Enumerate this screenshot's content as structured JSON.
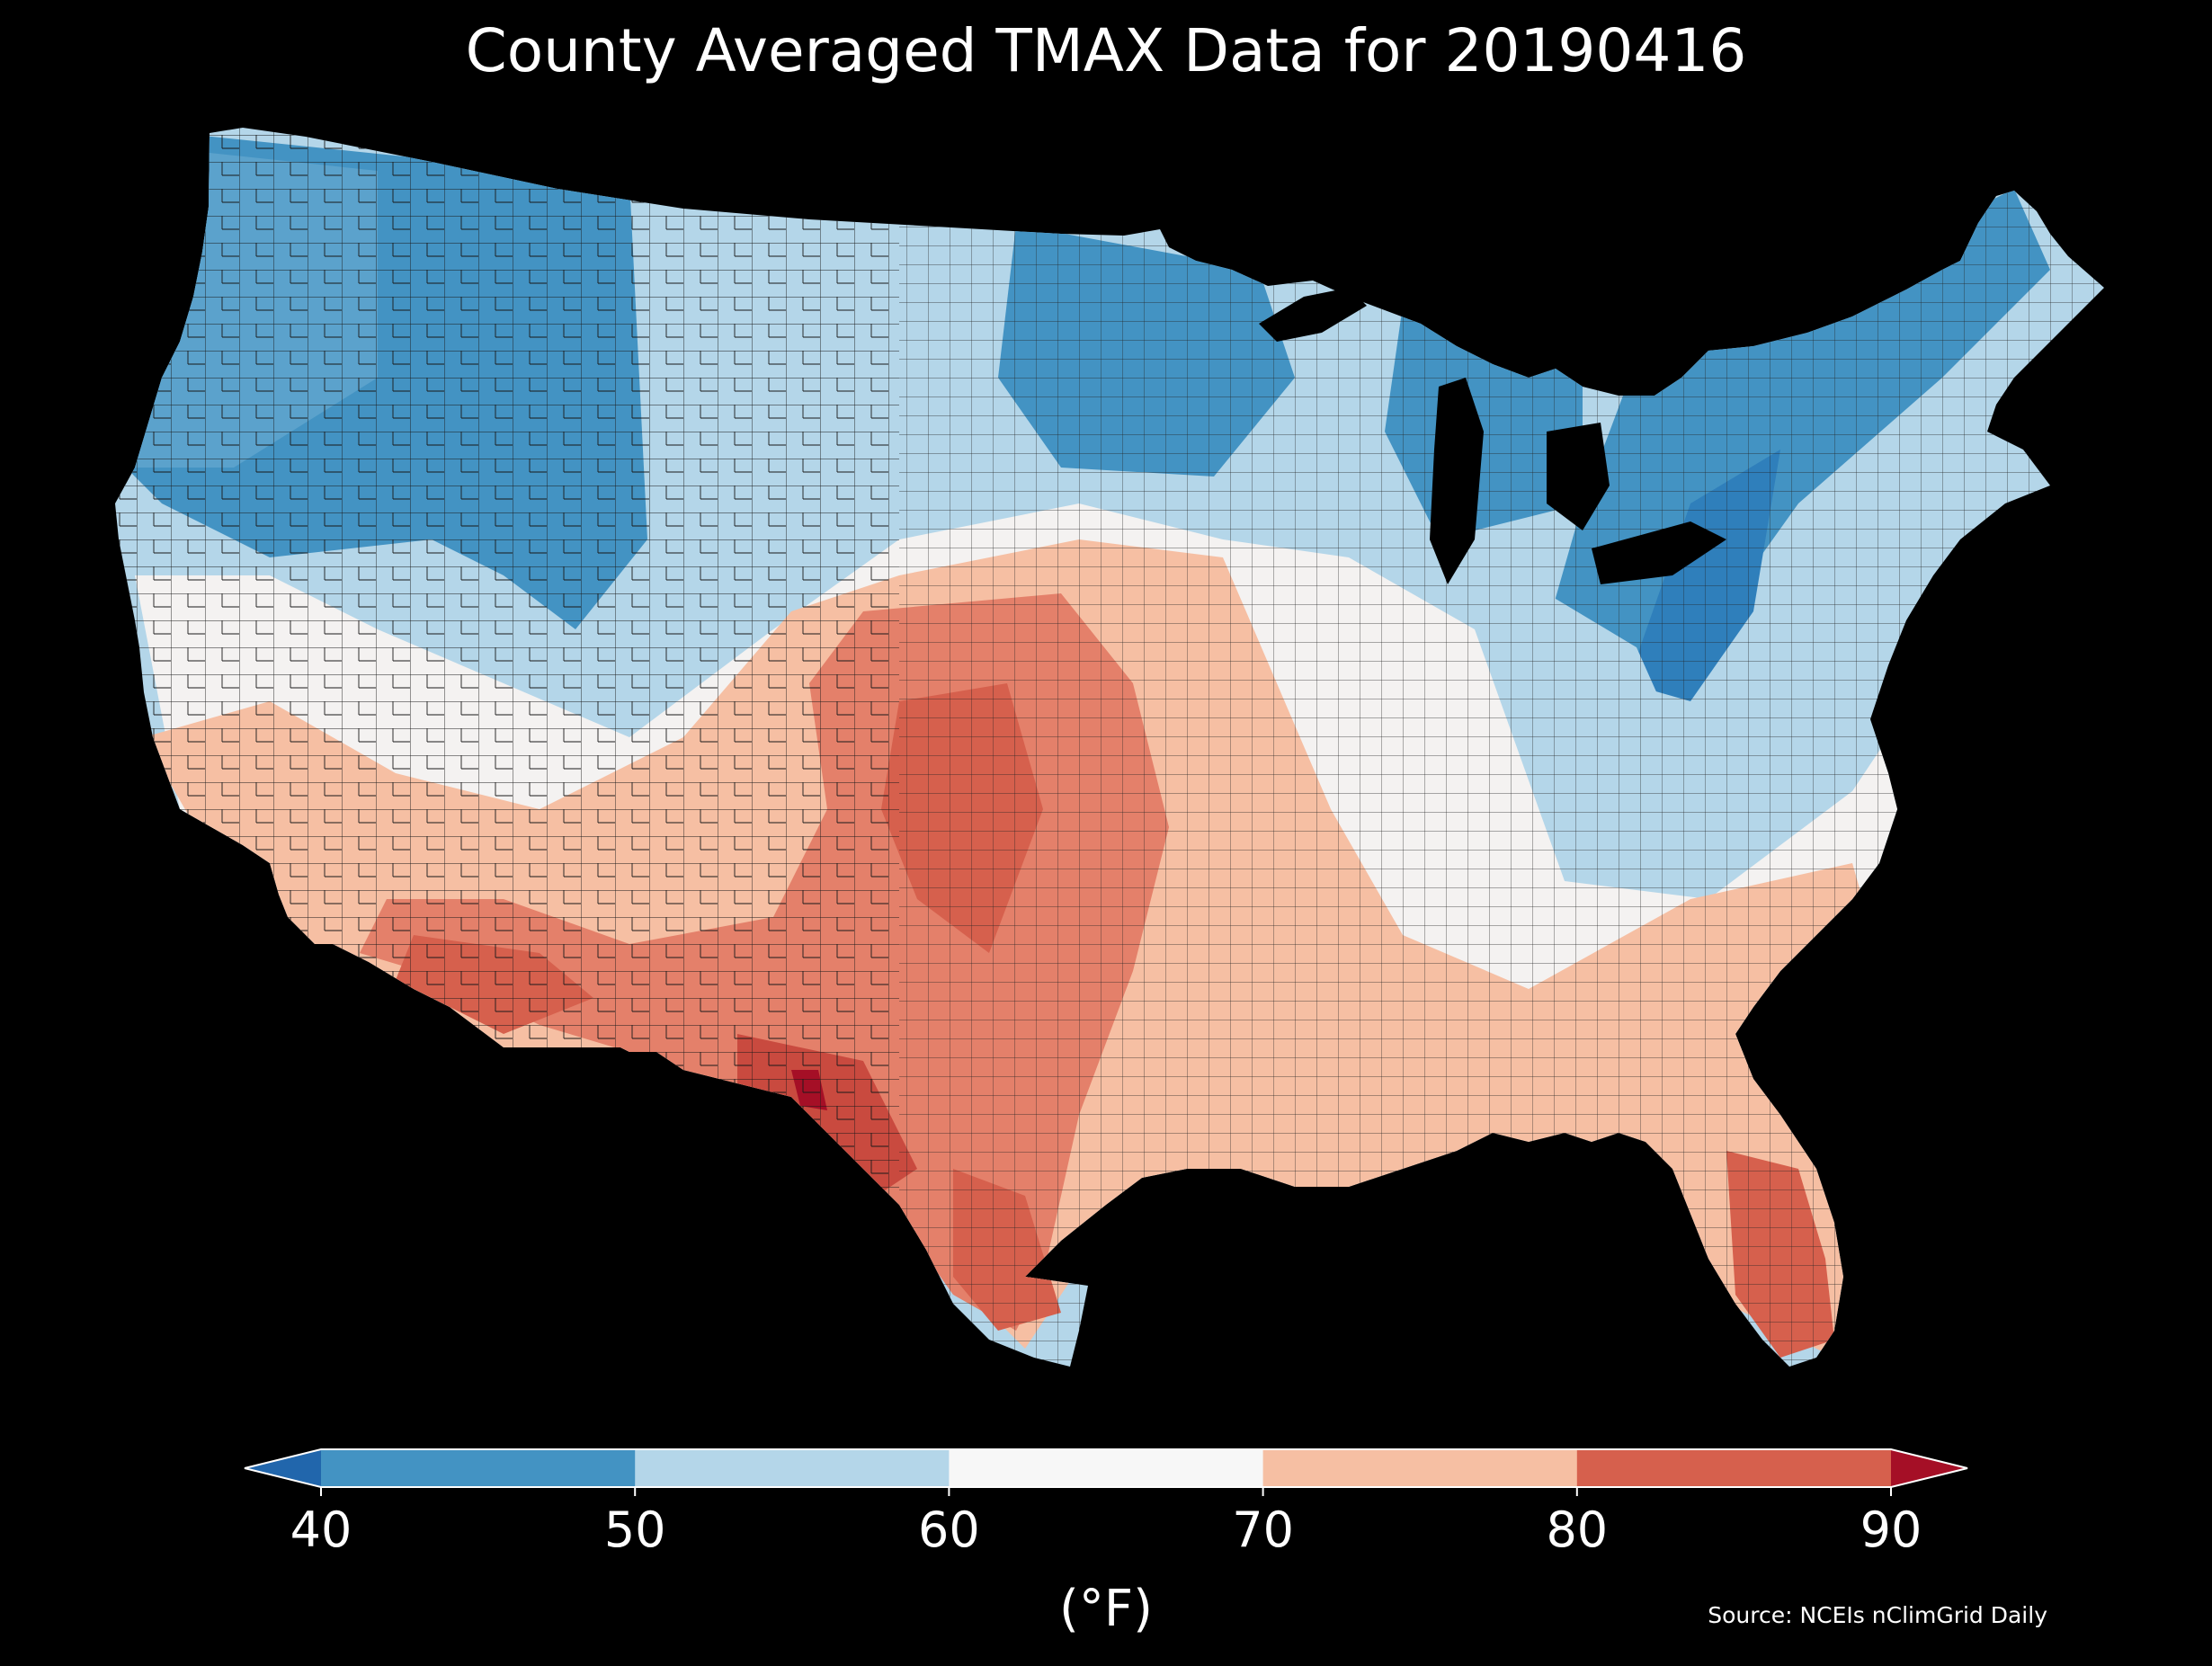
{
  "title": "County Averaged TMAX Data for 20190416",
  "colorbar": {
    "unit_label": "(°F)",
    "ticks": [
      "40",
      "50",
      "60",
      "70",
      "80",
      "90"
    ],
    "bins": [
      {
        "from": null,
        "to": 40,
        "color": "#2166ac"
      },
      {
        "from": 40,
        "to": 50,
        "color": "#4393c3"
      },
      {
        "from": 50,
        "to": 60,
        "color": "#b4d6e9"
      },
      {
        "from": 60,
        "to": 70,
        "color": "#f7f7f7"
      },
      {
        "from": 70,
        "to": 80,
        "color": "#f6bfa3"
      },
      {
        "from": 80,
        "to": 90,
        "color": "#d6604d"
      },
      {
        "from": 90,
        "to": null,
        "color": "#a50f26"
      }
    ]
  },
  "source": "Source: NCEIs nClimGrid Daily",
  "map": {
    "region": "contiguous United States, county level",
    "colors": {
      "background": "#000000",
      "county_border": "#1a1a1a"
    }
  }
}
